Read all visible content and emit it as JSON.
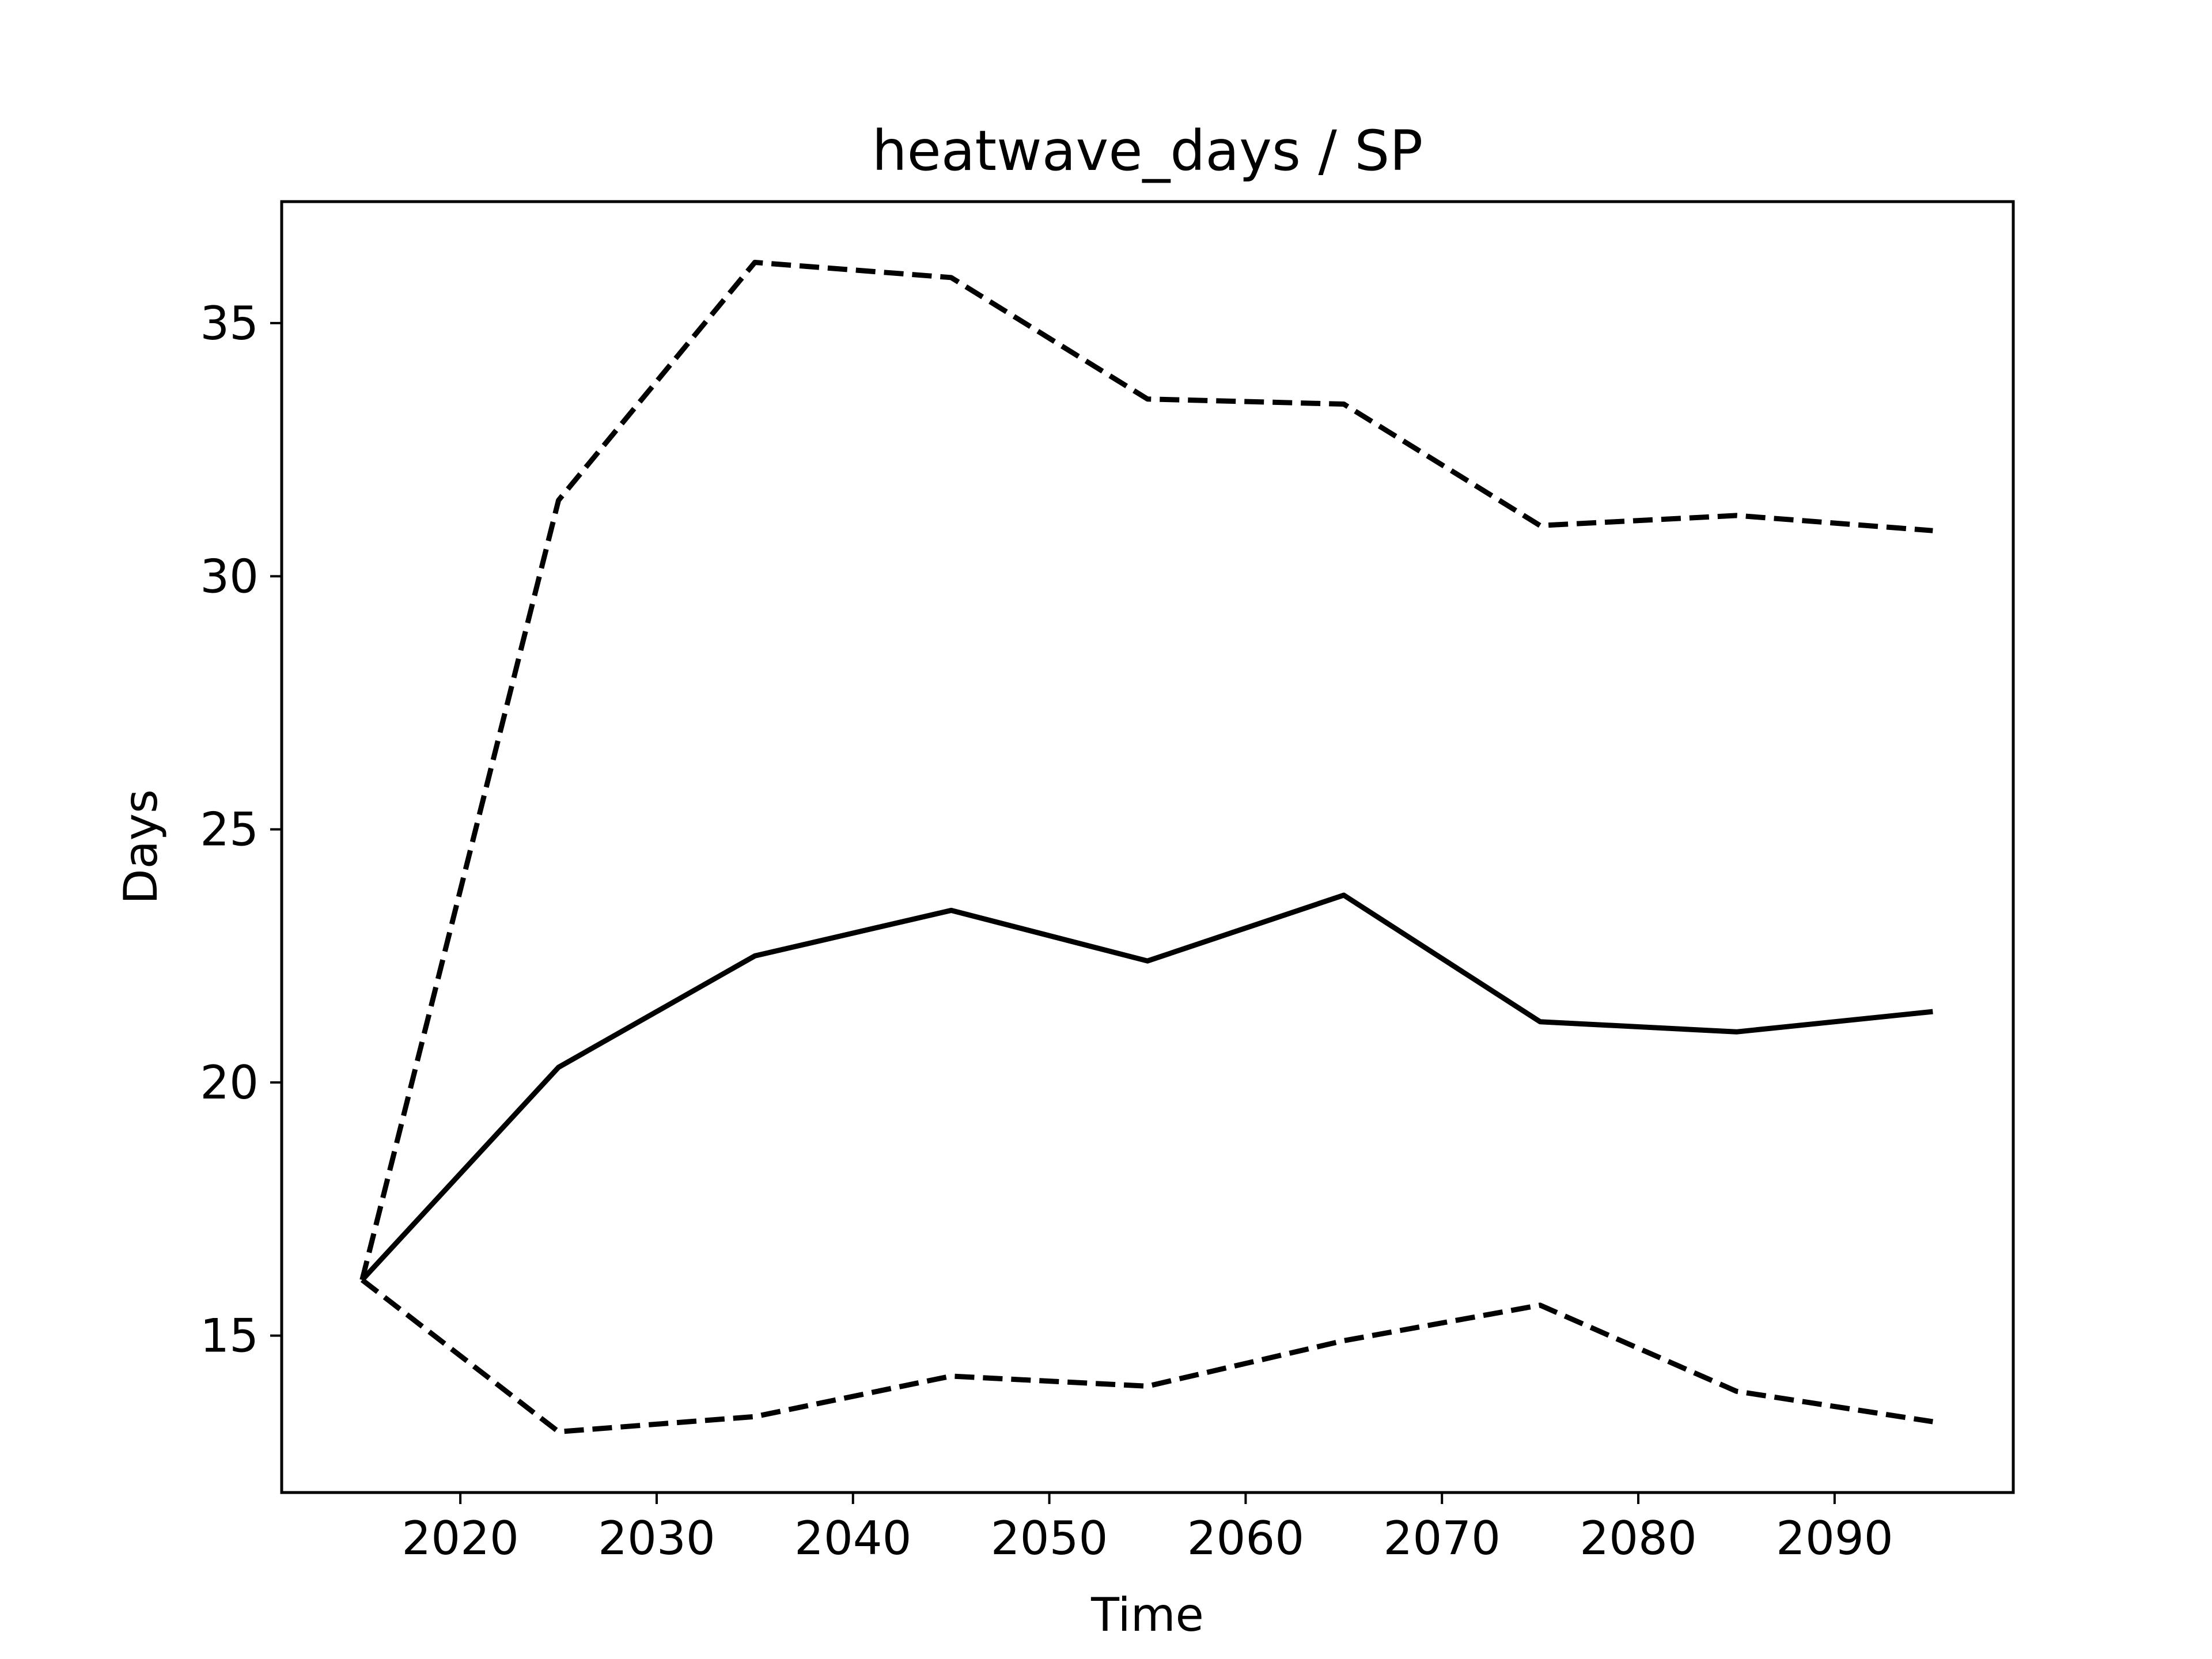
{
  "chart_data": {
    "type": "line",
    "title": "heatwave_days / SP",
    "xlabel": "Time",
    "ylabel": "Days",
    "x": [
      2015,
      2025,
      2035,
      2045,
      2055,
      2065,
      2075,
      2085,
      2095
    ],
    "xlim": [
      2010.9,
      2099.1
    ],
    "ylim": [
      11.9,
      37.4
    ],
    "xticks": [
      2020,
      2030,
      2040,
      2050,
      2060,
      2070,
      2080,
      2090
    ],
    "yticks": [
      15,
      20,
      25,
      30,
      35
    ],
    "grid": false,
    "series": [
      {
        "values": [
          16.1,
          31.5,
          36.2,
          35.9,
          33.5,
          33.4,
          31.0,
          31.2,
          30.9
        ],
        "style": "dashed",
        "color": "#000000"
      },
      {
        "values": [
          16.1,
          20.3,
          22.5,
          23.4,
          22.4,
          23.7,
          21.2,
          21.0,
          21.4
        ],
        "style": "solid",
        "color": "#000000"
      },
      {
        "values": [
          16.1,
          13.1,
          13.4,
          14.2,
          14.0,
          14.9,
          15.6,
          13.9,
          13.3
        ],
        "style": "dashed",
        "color": "#000000"
      }
    ]
  }
}
